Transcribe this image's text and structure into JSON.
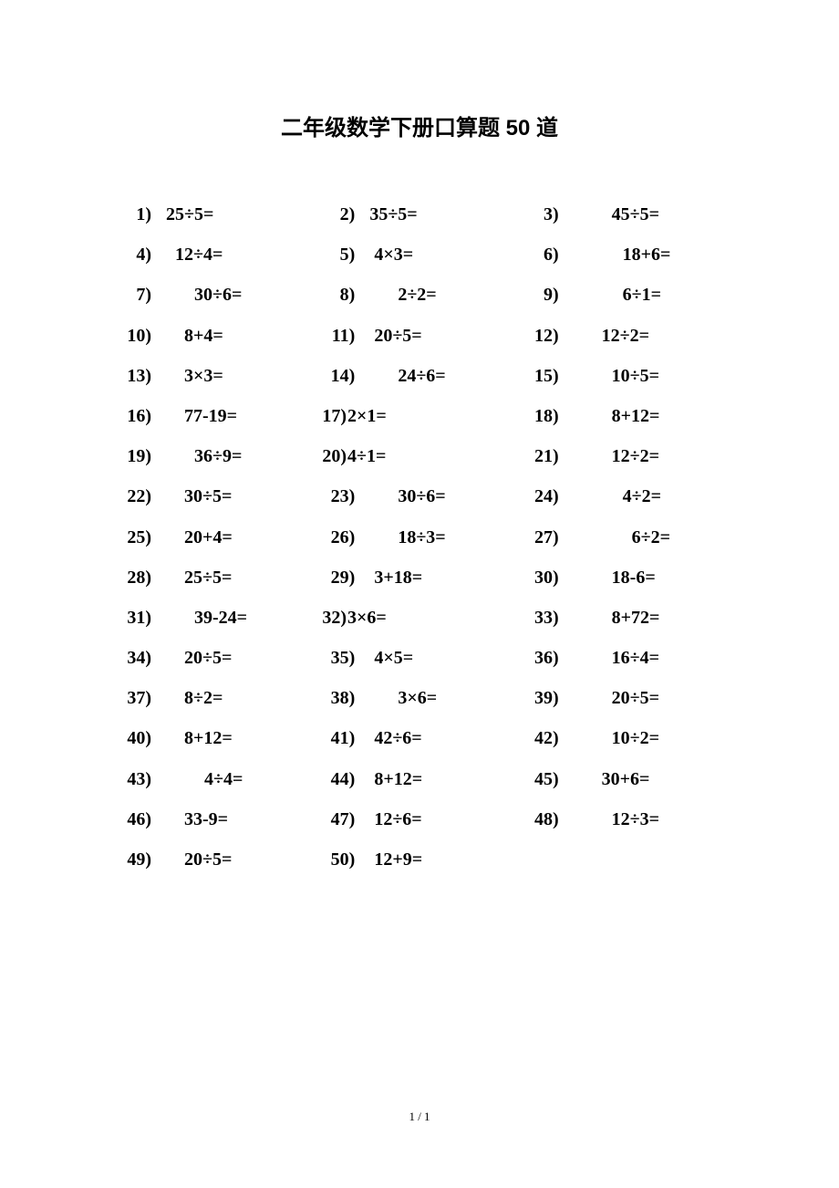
{
  "title": "二年级数学下册口算题 50 道",
  "title_fontsize": 24,
  "problem_fontsize": 20,
  "line_height": 44.2,
  "footer": "1 / 1",
  "footer_fontsize": 13,
  "background_color": "#ffffff",
  "text_color": "#000000",
  "num_width": 36,
  "problems": [
    {
      "n": "1)",
      "expr": "25÷5=",
      "indent": 16
    },
    {
      "n": "2)",
      "expr": "35÷5=",
      "indent": 16
    },
    {
      "n": "3)",
      "expr": "45÷5=",
      "indent": 58
    },
    {
      "n": "4)",
      "expr": "12÷4=",
      "indent": 26
    },
    {
      "n": "5)",
      "expr": "4×3=",
      "indent": 21
    },
    {
      "n": "6)",
      "expr": "18+6=",
      "indent": 70
    },
    {
      "n": "7)",
      "expr": "30÷6=",
      "indent": 47
    },
    {
      "n": "8)",
      "expr": "2÷2=",
      "indent": 47
    },
    {
      "n": "9)",
      "expr": "6÷1=",
      "indent": 70
    },
    {
      "n": "10)",
      "expr": "8+4=",
      "indent": 36
    },
    {
      "n": "11)",
      "expr": "20÷5=",
      "indent": 21
    },
    {
      "n": "12)",
      "expr": "12÷2=",
      "indent": 47
    },
    {
      "n": "13)",
      "expr": "3×3=",
      "indent": 36
    },
    {
      "n": "14)",
      "expr": "24÷6=",
      "indent": 47
    },
    {
      "n": "15)",
      "expr": "10÷5=",
      "indent": 58
    },
    {
      "n": "16)",
      "expr": "77-19=",
      "indent": 36
    },
    {
      "n": "17)",
      "expr": "2×1=",
      "indent": 1,
      "nowidth": true
    },
    {
      "n": "18)",
      "expr": "8+12=",
      "indent": 58
    },
    {
      "n": "19)",
      "expr": "36÷9=",
      "indent": 47
    },
    {
      "n": "20)",
      "expr": "4÷1=",
      "indent": 1,
      "nowidth": true
    },
    {
      "n": "21)",
      "expr": "12÷2=",
      "indent": 58
    },
    {
      "n": "22)",
      "expr": "30÷5=",
      "indent": 36
    },
    {
      "n": "23)",
      "expr": "30÷6=",
      "indent": 47
    },
    {
      "n": "24)",
      "expr": "4÷2=",
      "indent": 70
    },
    {
      "n": "25)",
      "expr": "20+4=",
      "indent": 36
    },
    {
      "n": "26)",
      "expr": "18÷3=",
      "indent": 47
    },
    {
      "n": "27)",
      "expr": "6÷2=",
      "indent": 80
    },
    {
      "n": "28)",
      "expr": "25÷5=",
      "indent": 36
    },
    {
      "n": "29)",
      "expr": "3+18=",
      "indent": 21
    },
    {
      "n": "30)",
      "expr": "18-6=",
      "indent": 58
    },
    {
      "n": "31)",
      "expr": "39-24=",
      "indent": 47
    },
    {
      "n": "32)",
      "expr": "3×6=",
      "indent": 1,
      "nowidth": true
    },
    {
      "n": "33)",
      "expr": "8+72=",
      "indent": 58
    },
    {
      "n": "34)",
      "expr": "20÷5=",
      "indent": 36
    },
    {
      "n": "35)",
      "expr": "4×5=",
      "indent": 21
    },
    {
      "n": "36)",
      "expr": "16÷4=",
      "indent": 58
    },
    {
      "n": "37)",
      "expr": "8÷2=",
      "indent": 36
    },
    {
      "n": "38)",
      "expr": "3×6=",
      "indent": 47
    },
    {
      "n": "39)",
      "expr": "20÷5=",
      "indent": 58
    },
    {
      "n": "40)",
      "expr": "8+12=",
      "indent": 36
    },
    {
      "n": "41)",
      "expr": "42÷6=",
      "indent": 21
    },
    {
      "n": "42)",
      "expr": "10÷2=",
      "indent": 58
    },
    {
      "n": "43)",
      "expr": "4÷4=",
      "indent": 58
    },
    {
      "n": "44)",
      "expr": "8+12=",
      "indent": 21
    },
    {
      "n": "45)",
      "expr": "30+6=",
      "indent": 47
    },
    {
      "n": "46)",
      "expr": "33-9=",
      "indent": 36
    },
    {
      "n": "47)",
      "expr": "12÷6=",
      "indent": 21
    },
    {
      "n": "48)",
      "expr": "12÷3=",
      "indent": 58
    },
    {
      "n": "49)",
      "expr": "20÷5=",
      "indent": 36
    },
    {
      "n": "50)",
      "expr": "12+9=",
      "indent": 21
    }
  ]
}
